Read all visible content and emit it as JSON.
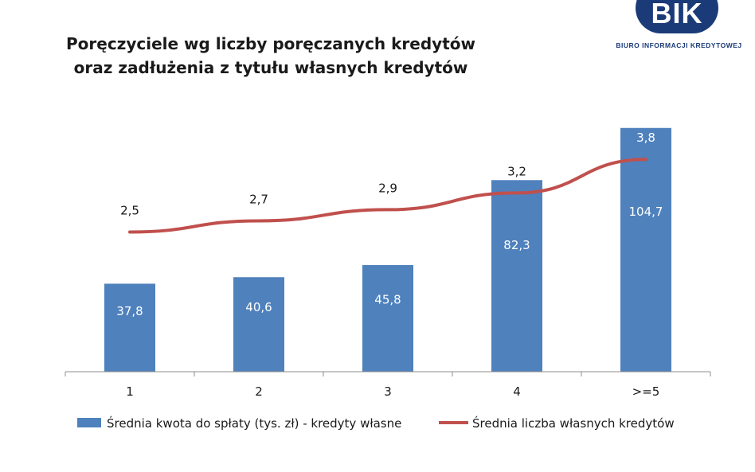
{
  "logo": {
    "mark": "BIK",
    "subtitle": "BIURO INFORMACJI KREDYTOWEJ"
  },
  "chart_data": {
    "type": "bar",
    "title_lines": [
      "Poręczyciele wg liczby poręczanych kredytów",
      "oraz zadłużenia z tytułu własnych kredytów"
    ],
    "categories": [
      "1",
      "2",
      "3",
      "4",
      ">=5"
    ],
    "series": [
      {
        "name": "Średnia kwota do spłaty (tys. zł) - kredyty własne",
        "type": "bar",
        "axis": "left",
        "color": "#4f81bd",
        "values": [
          37.8,
          40.6,
          45.8,
          82.3,
          104.7
        ],
        "labels": [
          "37,8",
          "40,6",
          "45,8",
          "82,3",
          "104,7"
        ]
      },
      {
        "name": "Średnia liczba własnych kredytów",
        "type": "line",
        "axis": "right",
        "color": "#c0504d",
        "values": [
          2.5,
          2.7,
          2.9,
          3.2,
          3.8
        ],
        "labels": [
          "2,5",
          "2,7",
          "2,9",
          "3,2",
          "3,8"
        ]
      }
    ],
    "ylim_left": [
      0,
      120
    ],
    "ylim_right": [
      0,
      5
    ],
    "axis_labels_visible": false,
    "grid": false,
    "legend_position": "bottom"
  }
}
